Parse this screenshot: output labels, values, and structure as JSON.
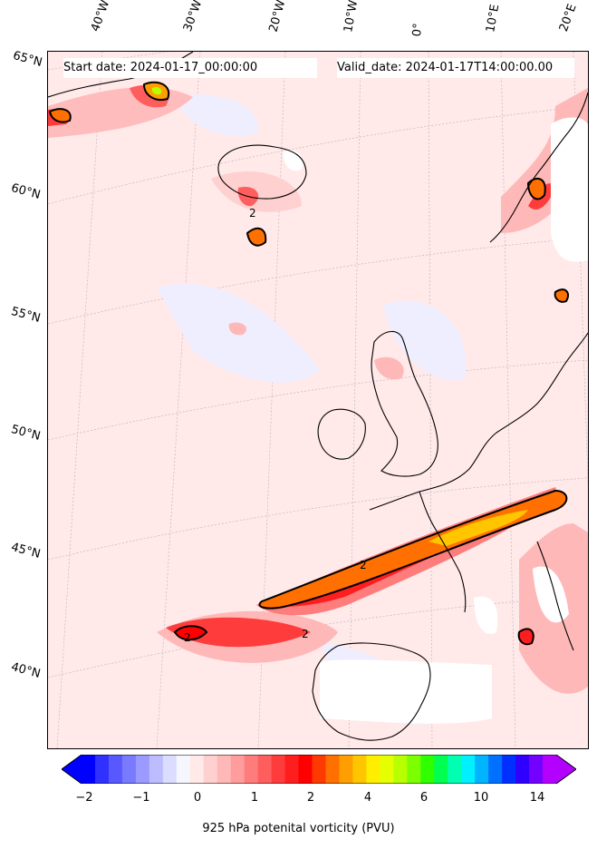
{
  "header": {
    "start_date": "Start date: 2024-01-17_00:00:00",
    "valid_date": "Valid_date: 2024-01-17T14:00:00.00"
  },
  "axes": {
    "longitude_labels": [
      "40°W",
      "30°W",
      "20°W",
      "10°W",
      "0°",
      "10°E",
      "20°E"
    ],
    "latitude_labels": [
      "65°N",
      "60°N",
      "55°N",
      "50°N",
      "45°N",
      "40°N"
    ]
  },
  "colorbar": {
    "label": "925 hPa potenital vorticity (PVU)",
    "tick_labels": [
      "−2",
      "−1",
      "0",
      "1",
      "2",
      "4",
      "6",
      "10",
      "14"
    ],
    "colors": [
      "#0000ff",
      "#3030ff",
      "#5858ff",
      "#7a7aff",
      "#9a9aff",
      "#bcbcff",
      "#dcdcff",
      "#f6f6ff",
      "#ffe9e9",
      "#ffd0d0",
      "#ffb8b8",
      "#ff9c9c",
      "#ff7c7c",
      "#ff5e5e",
      "#ff3c3c",
      "#ff1e1e",
      "#ff0000",
      "#ff3a00",
      "#ff7000",
      "#ff9e00",
      "#ffc600",
      "#ffee00",
      "#e6ff00",
      "#b8ff00",
      "#7cff00",
      "#30ff00",
      "#00ff50",
      "#00ffb0",
      "#00f0ff",
      "#00b4ff",
      "#0070ff",
      "#0030ff",
      "#3000ff",
      "#7400ff",
      "#b400ff"
    ]
  },
  "chart_data": {
    "type": "filled-contour map",
    "variable": "925 hPa potenital vorticity (PVU)",
    "start_date": "2024-01-17_00:00:00",
    "valid_date": "2024-01-17T14:00:00.00",
    "contour_line_label": "2",
    "longitude_range_deg": [
      -40,
      20
    ],
    "latitude_range_deg": [
      37,
      65
    ],
    "colorbar_ticks": [
      -2,
      -1,
      0,
      1,
      2,
      4,
      6,
      10,
      14
    ]
  }
}
